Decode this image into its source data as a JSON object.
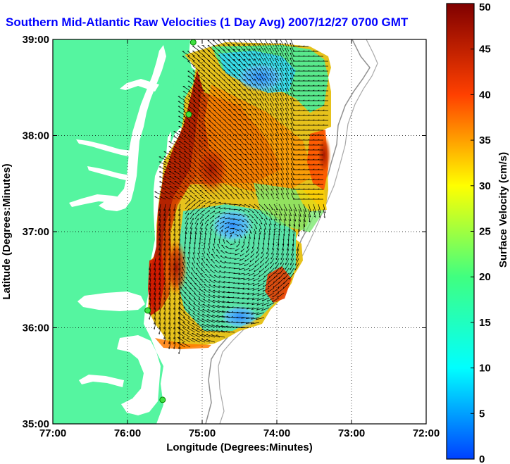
{
  "title": "Southern Mid-Atlantic Raw Velocities (1 Day Avg) 2007/12/27 0700 GMT",
  "chart_data": {
    "type": "heatmap",
    "xlabel": "Longitude (Degrees:Minutes)",
    "ylabel": "Latitude (Degrees:Minutes)",
    "xlim": [
      -77,
      -72
    ],
    "ylim": [
      35,
      39
    ],
    "x_ticks": [
      "77:00",
      "76:00",
      "75:00",
      "74:00",
      "73:00",
      "72:00"
    ],
    "y_ticks": [
      "35:00",
      "36:00",
      "37:00",
      "38:00",
      "39:00"
    ],
    "colorbar": {
      "label": "Surface Velocity (cm/s)",
      "min": 0,
      "max": 50,
      "ticks": [
        "0",
        "5",
        "10",
        "15",
        "20",
        "25",
        "30",
        "35",
        "40",
        "45",
        "50"
      ]
    },
    "stations": [
      {
        "lon": -75.12,
        "lat": 38.97
      },
      {
        "lon": -75.18,
        "lat": 38.22
      },
      {
        "lon": -75.73,
        "lat": 36.18
      },
      {
        "lon": -75.53,
        "lat": 35.25
      }
    ]
  },
  "colors": {
    "land": "#55f5a0",
    "water": "#ffffff",
    "title": "#0000ff"
  }
}
